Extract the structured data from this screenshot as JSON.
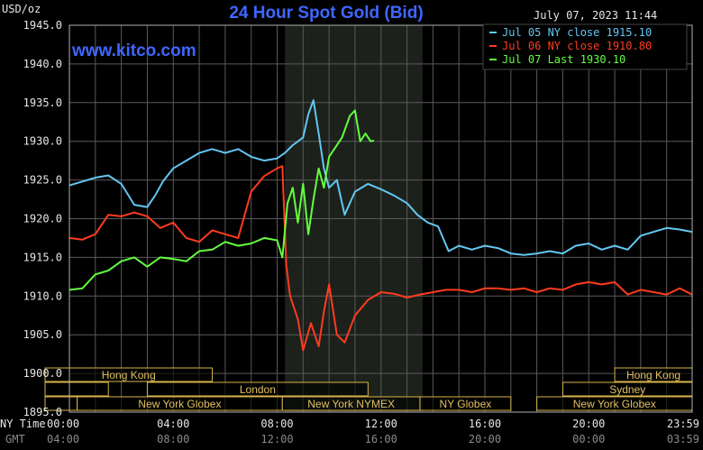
{
  "chart_data": {
    "type": "line",
    "title": "24 Hour Spot Gold (Bid)",
    "source": "www.kitco.com",
    "timestamp": "July 07, 2023 11:44",
    "y_unit": "USD/oz",
    "ylim": [
      1895,
      1945
    ],
    "y_ticks": [
      "1945.0",
      "1940.0",
      "1935.0",
      "1930.0",
      "1925.0",
      "1920.0",
      "1915.0",
      "1910.0",
      "1905.0",
      "1900.0",
      "1895.0"
    ],
    "x_row_labels": [
      "NY Time",
      "GMT"
    ],
    "x_ticks_ny": [
      "00:00",
      "04:00",
      "08:00",
      "12:00",
      "16:00",
      "20:00",
      "23:59"
    ],
    "x_ticks_gmt": [
      "04:00",
      "08:00",
      "12:00",
      "16:00",
      "20:00",
      "00:00",
      "03:59"
    ],
    "x_hours": [
      0,
      4,
      8,
      12,
      16,
      20,
      23.983
    ],
    "xlim": [
      0,
      23.983
    ],
    "grid": true,
    "legend_position": "top-right",
    "highlight_window_hours": [
      8.3,
      13.6
    ],
    "series": [
      {
        "name": "Jul 05 NY close 1915.10",
        "color": "#63c7f2",
        "x": [
          0,
          0.5,
          1,
          1.5,
          2,
          2.5,
          3,
          3.3,
          3.6,
          4,
          4.5,
          5,
          5.5,
          6,
          6.5,
          7,
          7.5,
          8,
          8.3,
          8.6,
          9,
          9.2,
          9.4,
          9.6,
          9.8,
          10,
          10.3,
          10.6,
          11,
          11.5,
          12,
          12.5,
          13,
          13.4,
          13.8,
          14.2,
          14.6,
          15,
          15.5,
          16,
          16.5,
          17,
          17.5,
          18,
          18.5,
          19,
          19.5,
          20,
          20.5,
          21,
          21.5,
          22,
          22.5,
          23,
          23.5,
          23.98
        ],
        "y": [
          1924.3,
          1924.8,
          1925.3,
          1925.6,
          1924.5,
          1921.8,
          1921.5,
          1923.0,
          1924.8,
          1926.5,
          1927.5,
          1928.5,
          1929.0,
          1928.5,
          1929.0,
          1928.0,
          1927.5,
          1927.8,
          1928.5,
          1929.5,
          1930.5,
          1933.5,
          1935.3,
          1931.0,
          1926.5,
          1924.0,
          1925.0,
          1920.5,
          1923.5,
          1924.5,
          1923.8,
          1923.0,
          1922.0,
          1920.5,
          1919.5,
          1919.0,
          1915.8,
          1916.5,
          1916.0,
          1916.5,
          1916.2,
          1915.5,
          1915.3,
          1915.5,
          1915.8,
          1915.5,
          1916.5,
          1916.8,
          1916.0,
          1916.5,
          1916.0,
          1917.8,
          1918.3,
          1918.8,
          1918.6,
          1918.3
        ]
      },
      {
        "name": "Jul 06 NY close 1910.80",
        "color": "#ff3b1f",
        "x": [
          0,
          0.5,
          1,
          1.5,
          2,
          2.5,
          3,
          3.5,
          4,
          4.5,
          5,
          5.5,
          6,
          6.5,
          7,
          7.5,
          8,
          8.2,
          8.35,
          8.5,
          8.8,
          9,
          9.3,
          9.6,
          9.8,
          10,
          10.3,
          10.6,
          11,
          11.5,
          12,
          12.5,
          13,
          13.5,
          14,
          14.5,
          15,
          15.5,
          16,
          16.5,
          17,
          17.5,
          18,
          18.5,
          19,
          19.5,
          20,
          20.5,
          21,
          21.5,
          22,
          22.5,
          23,
          23.5,
          23.98
        ],
        "y": [
          1917.5,
          1917.3,
          1918.0,
          1920.5,
          1920.3,
          1920.8,
          1920.3,
          1918.8,
          1919.5,
          1917.5,
          1917.0,
          1918.5,
          1918.0,
          1917.5,
          1923.5,
          1925.5,
          1926.5,
          1926.8,
          1914.0,
          1910.0,
          1907.0,
          1903.0,
          1906.5,
          1903.5,
          1908.0,
          1911.5,
          1905.0,
          1904.0,
          1907.5,
          1909.5,
          1910.5,
          1910.3,
          1909.8,
          1910.2,
          1910.5,
          1910.8,
          1910.8,
          1910.5,
          1911.0,
          1911.0,
          1910.8,
          1911.0,
          1910.5,
          1911.0,
          1910.8,
          1911.5,
          1911.8,
          1911.5,
          1911.8,
          1910.2,
          1910.8,
          1910.5,
          1910.2,
          1911.0,
          1910.2
        ]
      },
      {
        "name": "Jul 07 Last 1930.10",
        "color": "#63ff3f",
        "x": [
          0,
          0.5,
          1,
          1.5,
          2,
          2.5,
          3,
          3.5,
          4,
          4.5,
          5,
          5.5,
          6,
          6.5,
          7,
          7.5,
          8,
          8.2,
          8.4,
          8.6,
          8.8,
          9,
          9.2,
          9.4,
          9.6,
          9.8,
          10,
          10.2,
          10.5,
          10.8,
          11,
          11.2,
          11.4,
          11.6,
          11.73
        ],
        "y": [
          1910.8,
          1911.0,
          1912.8,
          1913.3,
          1914.5,
          1915.0,
          1913.8,
          1915.0,
          1914.8,
          1914.5,
          1915.8,
          1916.0,
          1917.0,
          1916.5,
          1916.8,
          1917.5,
          1917.2,
          1915.0,
          1922.0,
          1924.0,
          1919.5,
          1924.5,
          1918.0,
          1922.5,
          1926.5,
          1924.0,
          1928.0,
          1929.0,
          1930.5,
          1933.3,
          1934.0,
          1930.0,
          1931.0,
          1930.0,
          1930.1
        ]
      }
    ]
  },
  "markets": [
    {
      "label": "Hong Kong",
      "row": 0,
      "start": 0,
      "end": 5.5,
      "show_label": true
    },
    {
      "label": "Hong Kong",
      "row": 0,
      "start": 21.0,
      "end": 23.983,
      "show_label": true
    },
    {
      "label": "",
      "row": 1,
      "start": 0,
      "end": 1.5,
      "show_label": false
    },
    {
      "label": "London",
      "row": 1,
      "start": 3.0,
      "end": 11.5,
      "show_label": true
    },
    {
      "label": "Sydney",
      "row": 1,
      "start": 19.0,
      "end": 23.983,
      "show_label": true
    },
    {
      "label": "",
      "row": 2,
      "start": 0,
      "end": 0.3,
      "show_label": false
    },
    {
      "label": "New York Globex",
      "row": 2,
      "start": 0.3,
      "end": 8.2,
      "show_label": true
    },
    {
      "label": "New York NYMEX",
      "row": 2,
      "start": 8.2,
      "end": 13.5,
      "show_label": true
    },
    {
      "label": "NY Globex",
      "row": 2,
      "start": 13.5,
      "end": 17.0,
      "show_label": true
    },
    {
      "label": "New York Globex",
      "row": 2,
      "start": 18.0,
      "end": 23.983,
      "show_label": true
    }
  ]
}
